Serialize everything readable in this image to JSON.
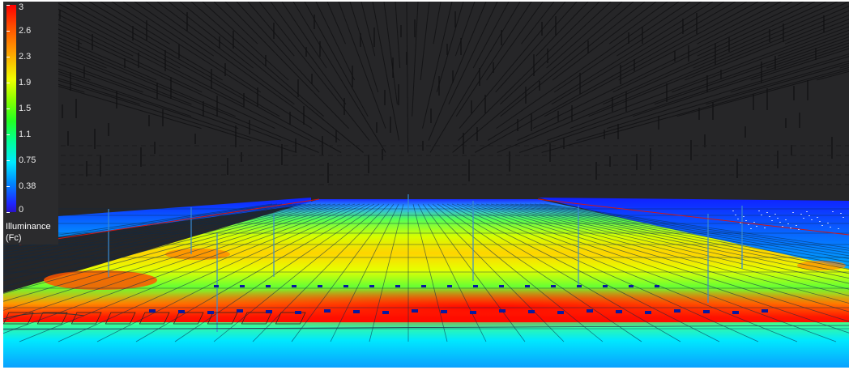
{
  "legend": {
    "title_line1": "Illuminance",
    "title_line2": "(Fc)",
    "ticks": [
      "3",
      "2.6",
      "2.3",
      "1.9",
      "1.5",
      "1.1",
      "0.75",
      "0.38",
      "0"
    ]
  },
  "colors": {
    "background": "#262628",
    "scale_high": "#ff0000",
    "scale_mid": "#22ff22",
    "scale_low": "#1f24ff"
  }
}
